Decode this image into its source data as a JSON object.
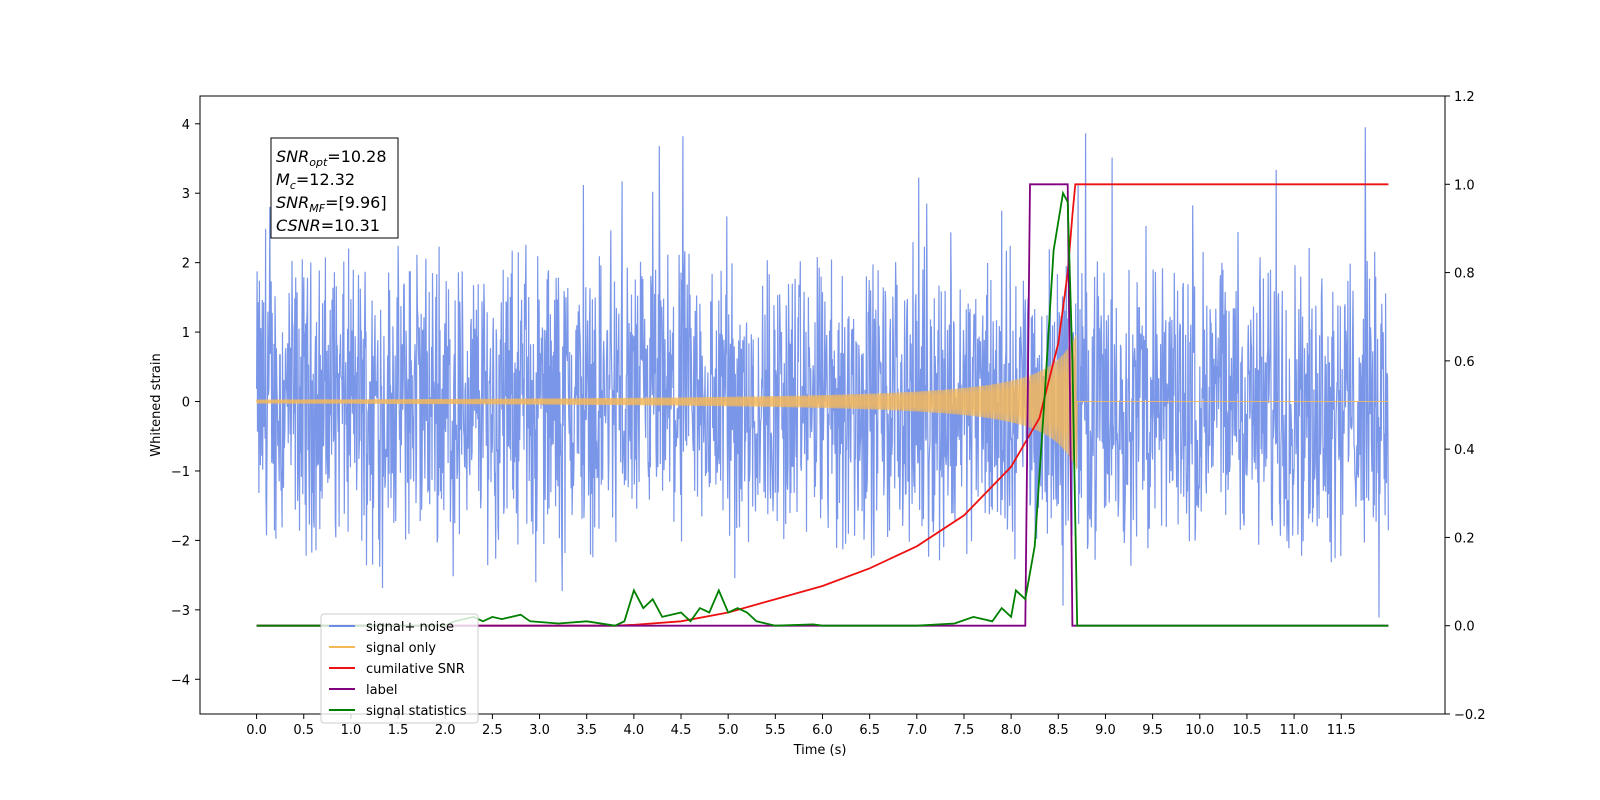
{
  "chart_data": {
    "type": "line",
    "xlabel": "Time (s)",
    "ylabel": "Whitened strain",
    "xlim": [
      -0.6,
      12.6
    ],
    "ylim": [
      -4.5,
      4.4
    ],
    "y2lim": [
      -0.2,
      1.2
    ],
    "grid": false,
    "legend_position": "lower-left",
    "xticks": [
      "0.0",
      "0.5",
      "1.0",
      "1.5",
      "2.0",
      "2.5",
      "3.0",
      "3.5",
      "4.0",
      "4.5",
      "5.0",
      "5.5",
      "6.0",
      "6.5",
      "7.0",
      "7.5",
      "8.0",
      "8.5",
      "9.0",
      "9.5",
      "10.0",
      "10.5",
      "11.0",
      "11.5"
    ],
    "yticks": [
      "4",
      "3",
      "2",
      "1",
      "0",
      "−1",
      "−2",
      "−3",
      "−4"
    ],
    "y2ticks": [
      "1.2",
      "1.0",
      "0.8",
      "0.6",
      "0.4",
      "0.2",
      "0.0",
      "−0.2"
    ],
    "annotation": [
      {
        "sym": "SNR",
        "sub": "opt",
        "value": "=10.28"
      },
      {
        "sym": "M",
        "sub": "c",
        "value": "=12.32"
      },
      {
        "sym": "SNR",
        "sub": "MF",
        "value": "=[9.96]"
      },
      {
        "sym": "CSNR",
        "sub": "",
        "value": "=10.31"
      }
    ],
    "series": [
      {
        "name": "signal+ noise",
        "color": "#6b8be6",
        "axis": "left",
        "noise_band": [
          -2.0,
          2.0
        ],
        "x_range": [
          0,
          12
        ]
      },
      {
        "name": "signal only",
        "color": "#f5b95a",
        "axis": "left",
        "chirp_end": 8.7,
        "peak_amplitude": 1.0
      },
      {
        "name": "cumilative SNR",
        "color": "#ee1111",
        "axis": "right",
        "points": [
          [
            0,
            0.0
          ],
          [
            3.8,
            0.0
          ],
          [
            4.0,
            0.002
          ],
          [
            4.5,
            0.01
          ],
          [
            5.0,
            0.03
          ],
          [
            5.5,
            0.06
          ],
          [
            6.0,
            0.09
          ],
          [
            6.5,
            0.13
          ],
          [
            7.0,
            0.18
          ],
          [
            7.5,
            0.25
          ],
          [
            8.0,
            0.36
          ],
          [
            8.3,
            0.47
          ],
          [
            8.5,
            0.64
          ],
          [
            8.6,
            0.8
          ],
          [
            8.65,
            0.93
          ],
          [
            8.68,
            1.0
          ],
          [
            12.0,
            1.0
          ]
        ]
      },
      {
        "name": "label",
        "color": "#800080",
        "axis": "right",
        "points": [
          [
            0,
            0
          ],
          [
            8.15,
            0
          ],
          [
            8.2,
            1
          ],
          [
            8.6,
            1
          ],
          [
            8.65,
            0
          ],
          [
            12,
            0
          ]
        ]
      },
      {
        "name": "signal statistics",
        "color": "#008000",
        "axis": "right",
        "points": [
          [
            0,
            0
          ],
          [
            2.0,
            0
          ],
          [
            2.1,
            0.01
          ],
          [
            2.3,
            0.02
          ],
          [
            2.4,
            0.01
          ],
          [
            2.5,
            0.02
          ],
          [
            2.6,
            0.015
          ],
          [
            2.8,
            0.025
          ],
          [
            2.9,
            0.01
          ],
          [
            3.2,
            0.005
          ],
          [
            3.5,
            0.01
          ],
          [
            3.8,
            0.0
          ],
          [
            3.9,
            0.01
          ],
          [
            4.0,
            0.08
          ],
          [
            4.1,
            0.04
          ],
          [
            4.2,
            0.06
          ],
          [
            4.3,
            0.02
          ],
          [
            4.5,
            0.03
          ],
          [
            4.6,
            0.01
          ],
          [
            4.7,
            0.04
          ],
          [
            4.8,
            0.03
          ],
          [
            4.9,
            0.08
          ],
          [
            5.0,
            0.03
          ],
          [
            5.1,
            0.04
          ],
          [
            5.2,
            0.03
          ],
          [
            5.3,
            0.01
          ],
          [
            5.5,
            0.0
          ],
          [
            5.9,
            0.003
          ],
          [
            6.0,
            0.0
          ],
          [
            7.0,
            0.0
          ],
          [
            7.4,
            0.005
          ],
          [
            7.6,
            0.02
          ],
          [
            7.8,
            0.01
          ],
          [
            7.9,
            0.04
          ],
          [
            8.0,
            0.02
          ],
          [
            8.05,
            0.08
          ],
          [
            8.15,
            0.06
          ],
          [
            8.25,
            0.18
          ],
          [
            8.35,
            0.5
          ],
          [
            8.45,
            0.85
          ],
          [
            8.55,
            0.98
          ],
          [
            8.6,
            0.96
          ],
          [
            8.65,
            0.6
          ],
          [
            8.7,
            0.0
          ],
          [
            12,
            0.0
          ]
        ]
      }
    ]
  }
}
